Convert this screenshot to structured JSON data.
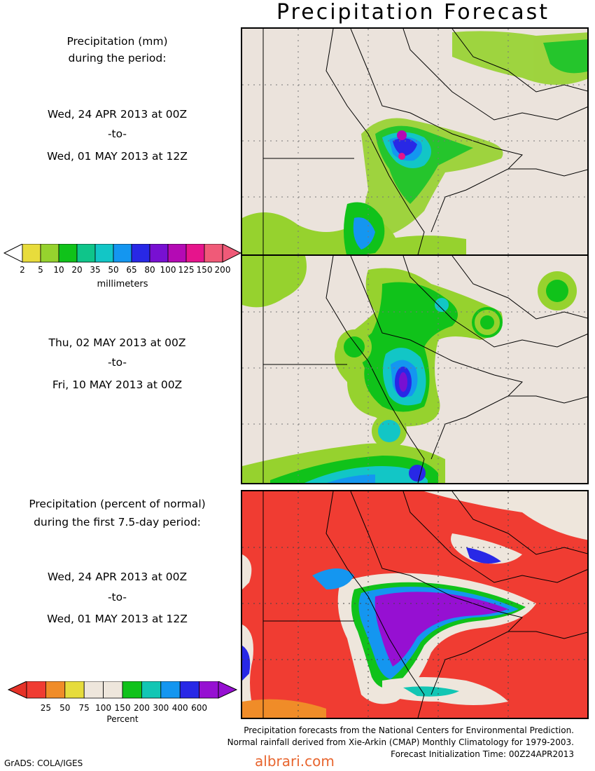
{
  "title": "Precipitation Forecast",
  "panel1": {
    "heading_line1": "Precipitation (mm)",
    "heading_line2": "during the period:",
    "start": "Wed, 24 APR 2013 at 00Z",
    "to": "-to-",
    "end": "Wed, 01 MAY 2013 at 12Z"
  },
  "panel2": {
    "start": "Thu, 02 MAY 2013 at 00Z",
    "to": "-to-",
    "end": "Fri, 10 MAY 2013 at 00Z"
  },
  "panel3": {
    "heading_line1": "Precipitation (percent of normal)",
    "heading_line2": "during the first 7.5-day period:",
    "start": "Wed, 24 APR 2013 at 00Z",
    "to": "-to-",
    "end": "Wed, 01 MAY 2013 at 12Z"
  },
  "colorbar_mm": {
    "unit": "millimeters",
    "labels": [
      "2",
      "5",
      "10",
      "20",
      "35",
      "50",
      "65",
      "80",
      "100",
      "125",
      "150",
      "200"
    ],
    "colors": [
      "#e8dc3c",
      "#96d22e",
      "#10c21a",
      "#0fc58a",
      "#12c6c6",
      "#1496f0",
      "#2828e6",
      "#7810d2",
      "#b40ab4",
      "#e6148c",
      "#f05a78"
    ]
  },
  "colorbar_pct": {
    "unit": "Percent",
    "labels": [
      "25",
      "50",
      "75",
      "100",
      "150",
      "200",
      "300",
      "400",
      "600"
    ],
    "colors": [
      "#f03c32",
      "#f08c28",
      "#e6dc3c",
      "#eee6dc",
      "#eee6dc",
      "#10c21a",
      "#12c6b4",
      "#1496f0",
      "#2828e6",
      "#9610d2"
    ]
  },
  "footer": {
    "line1": "Precipitation forecasts from the National Centers for Environmental Prediction.",
    "line2": "Normal rainfall derived from Xie-Arkin (CMAP) Monthly Climatology for 1979-2003.",
    "line3": "Forecast Initialization Time: 00Z24APR2013"
  },
  "credit": "GrADS: COLA/IGES",
  "watermark": "albrari.com"
}
